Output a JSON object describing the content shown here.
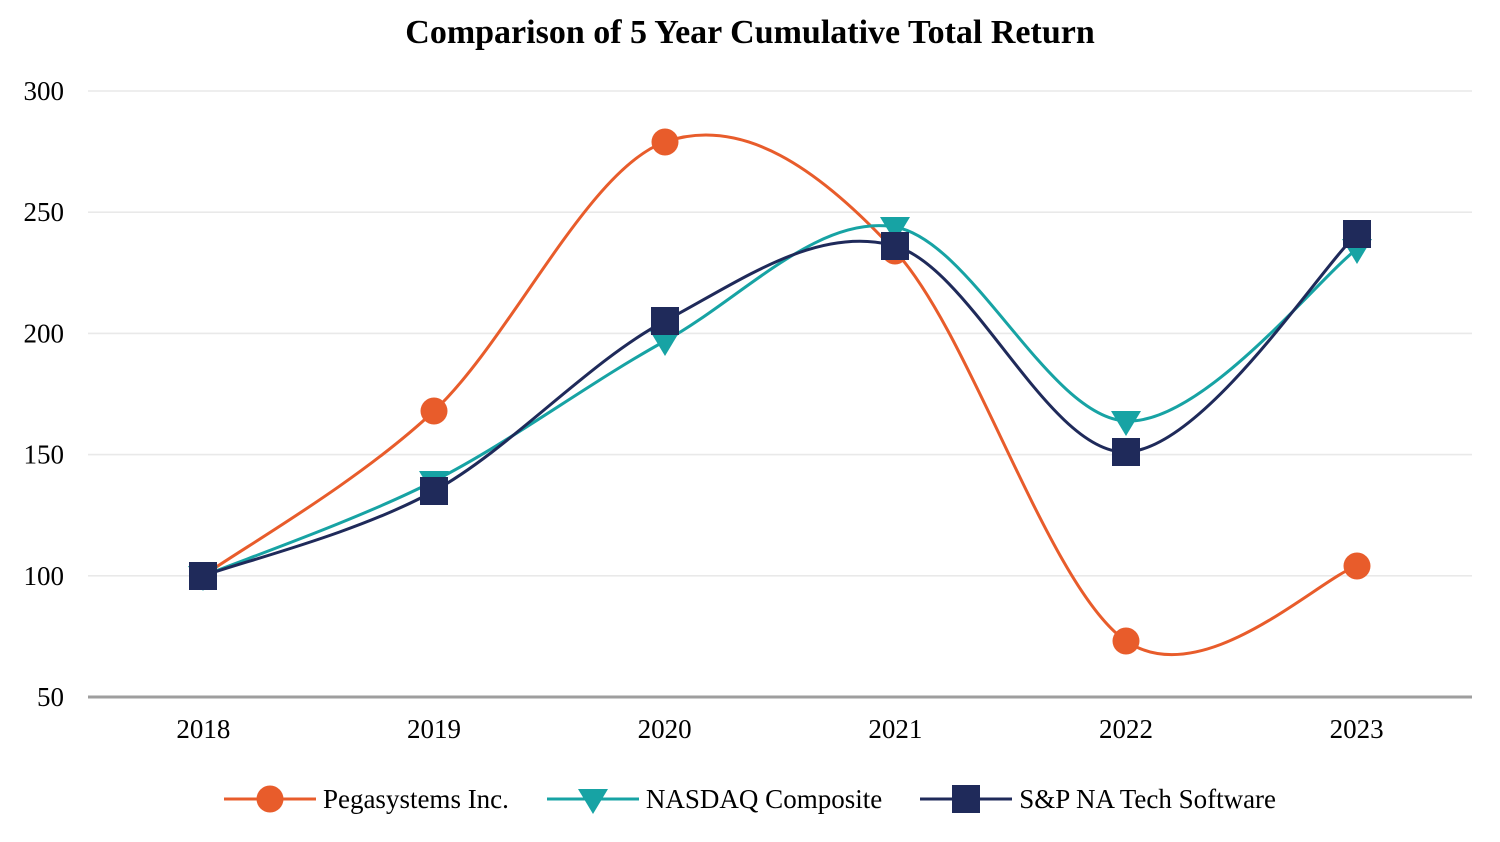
{
  "title": "Comparison of 5 Year Cumulative Total Return",
  "chart_data": {
    "type": "line",
    "title": "Comparison of 5 Year Cumulative Total Return",
    "categories": [
      "2018",
      "2019",
      "2020",
      "2021",
      "2022",
      "2023"
    ],
    "series": [
      {
        "name": "Pegasystems Inc.",
        "marker": "circle",
        "color": "#E85C2B",
        "values": [
          100,
          168,
          279,
          234,
          73,
          104
        ]
      },
      {
        "name": "NASDAQ Composite",
        "marker": "triangle-down",
        "color": "#17A3A4",
        "values": [
          100,
          139,
          197,
          244,
          164,
          235
        ]
      },
      {
        "name": "S&P NA Tech Software",
        "marker": "square",
        "color": "#1F2A5A",
        "values": [
          100,
          135,
          205,
          236,
          151,
          241
        ]
      }
    ],
    "xlabel": "",
    "ylabel": "",
    "ylim": [
      50,
      300
    ],
    "yticks": [
      50,
      100,
      150,
      200,
      250,
      300
    ],
    "grid": true,
    "smooth_lines": true,
    "legend_position": "bottom",
    "colors": {
      "gridline": "#E9E9E9",
      "axis_line": "#9E9E9E",
      "text": "#000000",
      "background": "#FFFFFF"
    }
  }
}
